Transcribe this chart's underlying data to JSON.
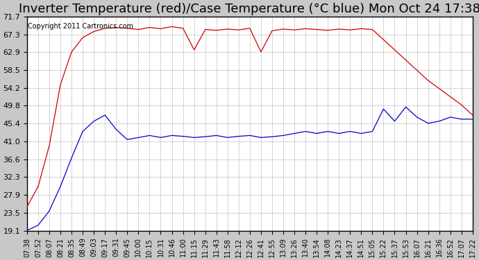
{
  "title": "Inverter Temperature (red)/Case Temperature (°C blue) Mon Oct 24 17:38",
  "copyright": "Copyright 2011 Cartronics.com",
  "yticks": [
    19.1,
    23.5,
    27.9,
    32.3,
    36.6,
    41.0,
    45.4,
    49.8,
    54.2,
    58.5,
    62.9,
    67.3,
    71.7
  ],
  "ymin": 19.1,
  "ymax": 71.7,
  "bg_color": "#c8c8c8",
  "plot_bg": "#ffffff",
  "grid_color": "#aaaaaa",
  "red_color": "#cc0000",
  "blue_color": "#0000cc",
  "title_fontsize": 13,
  "copyright_fontsize": 7,
  "xtick_fontsize": 7,
  "ytick_fontsize": 8,
  "time_labels": [
    "07:38",
    "07:52",
    "08:07",
    "08:21",
    "08:35",
    "08:49",
    "09:03",
    "09:17",
    "09:31",
    "09:45",
    "10:00",
    "10:15",
    "10:31",
    "10:46",
    "11:00",
    "11:15",
    "11:29",
    "11:43",
    "11:58",
    "12:12",
    "12:26",
    "12:41",
    "12:55",
    "13:09",
    "13:26",
    "13:40",
    "13:54",
    "14:08",
    "14:23",
    "14:37",
    "14:51",
    "15:05",
    "15:22",
    "15:37",
    "15:53",
    "16:07",
    "16:21",
    "16:36",
    "16:52",
    "17:07",
    "17:22"
  ],
  "red_data": [
    25.0,
    30.0,
    40.0,
    55.0,
    63.0,
    66.5,
    68.0,
    68.8,
    69.0,
    68.8,
    68.5,
    69.0,
    68.7,
    69.2,
    68.8,
    63.5,
    68.5,
    68.3,
    68.6,
    68.4,
    68.8,
    63.0,
    68.2,
    68.6,
    68.4,
    68.7,
    68.5,
    68.3,
    68.6,
    68.4,
    68.7,
    68.5,
    66.0,
    63.5,
    61.0,
    58.5,
    56.0,
    54.0,
    52.0,
    50.0,
    47.5
  ],
  "blue_data": [
    19.2,
    20.5,
    24.0,
    30.0,
    37.0,
    43.5,
    46.0,
    47.5,
    44.0,
    41.5,
    42.0,
    42.5,
    42.0,
    42.5,
    42.3,
    42.0,
    42.2,
    42.5,
    42.0,
    42.3,
    42.5,
    42.0,
    42.2,
    42.5,
    43.0,
    43.5,
    43.0,
    43.5,
    43.0,
    43.5,
    43.0,
    43.5,
    49.0,
    46.0,
    49.5,
    47.0,
    45.5,
    46.0,
    47.0,
    46.5,
    46.5
  ]
}
